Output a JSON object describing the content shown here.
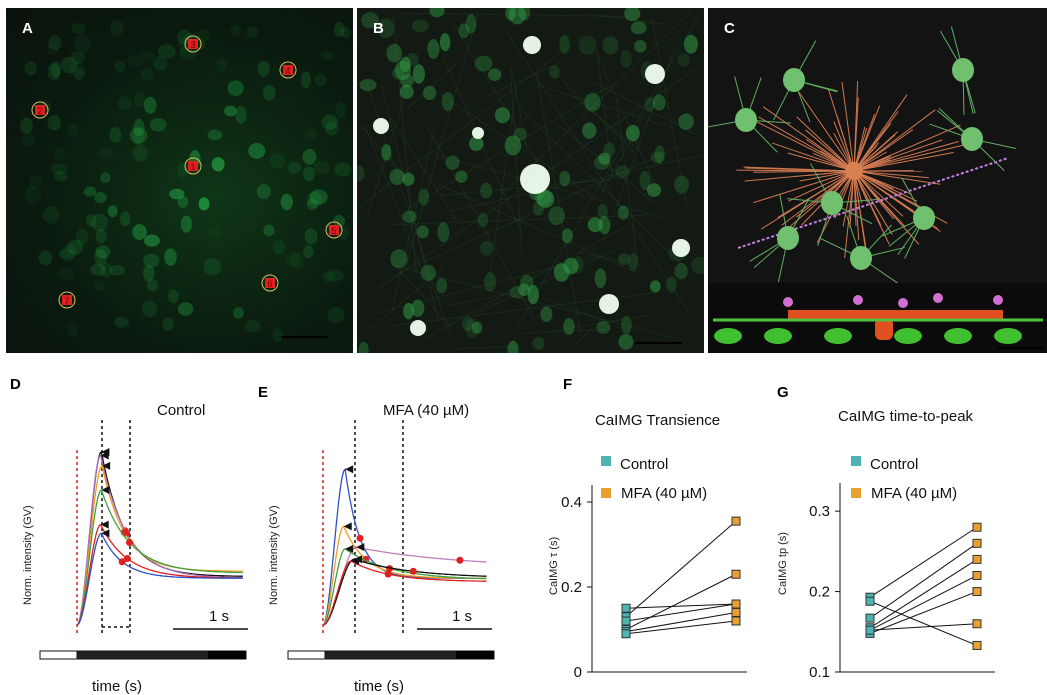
{
  "panels": {
    "A": {
      "label": "A",
      "roi_labels": [
        "1",
        "2",
        "3",
        "4",
        "5",
        "6",
        "7"
      ]
    },
    "B": {
      "label": "B"
    },
    "C": {
      "label": "C"
    },
    "D": {
      "label": "D",
      "title": "Control",
      "ylabel": "Norm. intensity (GV)",
      "xlabel": "time (s)",
      "scalebar": "1 s"
    },
    "E": {
      "label": "E",
      "title": "MFA (40 µM)",
      "ylabel": "Norm. intensity (GV)",
      "xlabel": "time (s)",
      "scalebar": "1 s"
    },
    "F": {
      "label": "F"
    },
    "G": {
      "label": "G"
    }
  },
  "colors": {
    "control": "#4fb3b3",
    "mfa": "#e8a030",
    "stim": "#e02020"
  },
  "chart_data": [
    {
      "id": "D",
      "type": "line",
      "title": "Control",
      "xlabel": "time (s)",
      "ylabel": "Norm. intensity (GV)",
      "traces": [
        {
          "color": "#111111",
          "peak": 1.0,
          "tp": 0.33,
          "tau": 0.32,
          "plateau": 0.28
        },
        {
          "color": "#b070c0",
          "peak": 0.98,
          "tp": 0.32,
          "tau": 0.35,
          "plateau": 0.27
        },
        {
          "color": "#f0a020",
          "peak": 0.92,
          "tp": 0.34,
          "tau": 0.3,
          "plateau": 0.31
        },
        {
          "color": "#40a040",
          "peak": 0.78,
          "tp": 0.33,
          "tau": 0.38,
          "plateau": 0.3
        },
        {
          "color": "#e02020",
          "peak": 0.58,
          "tp": 0.32,
          "tau": 0.36,
          "plateau": 0.27
        },
        {
          "color": "#3050c0",
          "peak": 0.53,
          "tp": 0.33,
          "tau": 0.28,
          "plateau": 0.27
        }
      ]
    },
    {
      "id": "E",
      "type": "line",
      "title": "MFA (40 µM)",
      "xlabel": "time (s)",
      "ylabel": "Norm. intensity (GV)",
      "traces": [
        {
          "color": "#3050c0",
          "peak": 0.9,
          "tp": 0.3,
          "tau": 0.2,
          "plateau": 0.27
        },
        {
          "color": "#f0a020",
          "peak": 0.57,
          "tp": 0.28,
          "tau": 0.3,
          "plateau": 0.27
        },
        {
          "color": "#c080c0",
          "peak": 0.45,
          "tp": 0.45,
          "tau": 1.4,
          "plateau": 0.33
        },
        {
          "color": "#40a040",
          "peak": 0.44,
          "tp": 0.3,
          "tau": 0.6,
          "plateau": 0.26
        },
        {
          "color": "#111111",
          "peak": 0.38,
          "tp": 0.42,
          "tau": 0.8,
          "plateau": 0.27
        },
        {
          "color": "#e02020",
          "peak": 0.37,
          "tp": 0.38,
          "tau": 0.5,
          "plateau": 0.25
        }
      ]
    },
    {
      "id": "F",
      "type": "scatter",
      "title": "CaIMG Transience",
      "ylabel": "CaIMG τ (s)",
      "legend": [
        "Control",
        "MFA (40 µM)"
      ],
      "ylim": [
        0,
        0.44
      ],
      "yticks": [
        "0",
        "0.2",
        "0.4"
      ],
      "ytick_values": [
        0,
        0.2,
        0.4
      ],
      "pairs": [
        [
          0.15,
          0.16
        ],
        [
          0.13,
          0.355
        ],
        [
          0.12,
          0.16
        ],
        [
          0.1,
          0.23
        ],
        [
          0.095,
          0.14
        ],
        [
          0.09,
          0.12
        ]
      ]
    },
    {
      "id": "G",
      "type": "scatter",
      "title": "CaIMG time-to-peak",
      "ylabel": "CaIMG tp (s)",
      "legend": [
        "Control",
        "MFA (40 µM)"
      ],
      "ylim": [
        0.1,
        0.335
      ],
      "yticks": [
        "0.1",
        "0.2",
        "0.3"
      ],
      "ytick_values": [
        0.1,
        0.2,
        0.3
      ],
      "pairs": [
        [
          0.193,
          0.28
        ],
        [
          0.167,
          0.26
        ],
        [
          0.155,
          0.24
        ],
        [
          0.152,
          0.22
        ],
        [
          0.148,
          0.2
        ],
        [
          0.152,
          0.16
        ],
        [
          0.188,
          0.133
        ]
      ]
    }
  ]
}
